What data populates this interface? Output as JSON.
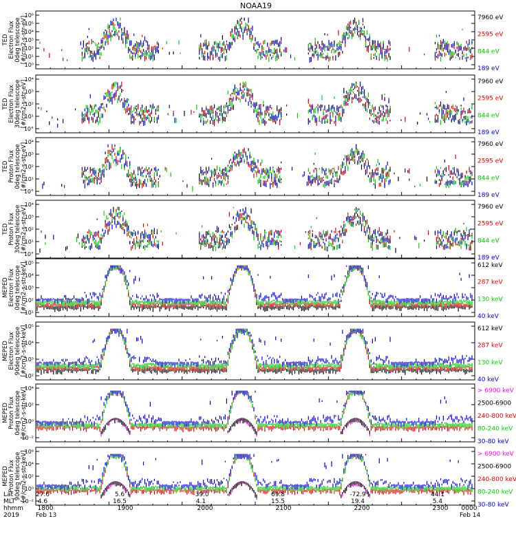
{
  "title": "NOAA19",
  "colors": {
    "black": "#000000",
    "red": "#e00000",
    "green": "#00d000",
    "blue": "#0000e0",
    "magenta": "#ff00ff"
  },
  "chart_data": [
    {
      "type": "scatter",
      "ylabel": [
        "TED",
        "Electron Flux",
        "0deg telescope",
        "[#/cm2-s-str-eV]"
      ],
      "yticks": [
        "10⁰",
        "10¹",
        "10²",
        "10³",
        "10⁴",
        "10⁵",
        "10⁶"
      ],
      "ylim_exp": [
        0,
        6
      ],
      "legend": [
        {
          "label": "7960 eV",
          "color": "black"
        },
        {
          "label": "2595 eV",
          "color": "red"
        },
        {
          "label": "844 eV",
          "color": "green"
        },
        {
          "label": "189 eV",
          "color": "blue"
        }
      ]
    },
    {
      "type": "scatter",
      "ylabel": [
        "TED",
        "Electron Flux",
        "30deg telescope",
        "[#/cm2-s-str-eV]"
      ],
      "yticks": [
        "10°",
        "10¹",
        "10²",
        "10³",
        "10⁴"
      ],
      "ylim_exp": [
        0,
        4.5
      ],
      "legend": [
        {
          "label": "7960 eV",
          "color": "black"
        },
        {
          "label": "2595 eV",
          "color": "red"
        },
        {
          "label": "844 eV",
          "color": "green"
        },
        {
          "label": "189 eV",
          "color": "blue"
        }
      ]
    },
    {
      "type": "scatter",
      "ylabel": [
        "TED",
        "Proton Flux",
        "0deg telescope",
        "[#/cm2-s-str-eV]"
      ],
      "yticks": [
        "10°",
        "10¹",
        "10²",
        "10³",
        "10⁴"
      ],
      "ylim_exp": [
        0,
        4.5
      ],
      "legend": [
        {
          "label": "7960 eV",
          "color": "black"
        },
        {
          "label": "2595 eV",
          "color": "red"
        },
        {
          "label": "844 eV",
          "color": "green"
        },
        {
          "label": "189 eV",
          "color": "blue"
        }
      ]
    },
    {
      "type": "scatter",
      "ylabel": [
        "TED",
        "Proton Flux",
        "30deg telescope",
        "[#/cm2-s-str-eV]"
      ],
      "yticks": [
        "10°",
        "10¹",
        "10²",
        "10³",
        "10⁴"
      ],
      "ylim_exp": [
        0,
        4.5
      ],
      "legend": [
        {
          "label": "7960 eV",
          "color": "black"
        },
        {
          "label": "2595 eV",
          "color": "red"
        },
        {
          "label": "844 eV",
          "color": "green"
        },
        {
          "label": "189 eV",
          "color": "blue"
        }
      ]
    },
    {
      "type": "scatter",
      "ylabel": [
        "MEPED",
        "Electron Flux",
        "0deg telescope",
        "[#/cm2-s-str-keV]"
      ],
      "yticks": [
        "10¹",
        "10²",
        "10³",
        "10⁴",
        "10⁵"
      ],
      "ylim_exp": [
        1,
        5.5
      ],
      "legend": [
        {
          "label": "612 keV",
          "color": "black"
        },
        {
          "label": "287 keV",
          "color": "red"
        },
        {
          "label": "130 keV",
          "color": "green"
        },
        {
          "label": "40 keV",
          "color": "blue"
        }
      ]
    },
    {
      "type": "scatter",
      "ylabel": [
        "MEPED",
        "Electron Flux",
        "90deg telescope",
        "[#/cm2-s-str-keV]"
      ],
      "yticks": [
        "10²",
        "10³",
        "10⁴",
        "10⁵"
      ],
      "ylim_exp": [
        1.6,
        5.4
      ],
      "legend": [
        {
          "label": "612 keV",
          "color": "black"
        },
        {
          "label": "287 keV",
          "color": "red"
        },
        {
          "label": "130 keV",
          "color": "green"
        },
        {
          "label": "40 keV",
          "color": "blue"
        }
      ]
    },
    {
      "type": "scatter",
      "ylabel": [
        "MEPED",
        "Proton Flux",
        "0deg telescope",
        "[#/cm2-s-str-keV]"
      ],
      "yticks": [
        "10⁻²",
        "10⁰",
        "10²",
        "10⁴"
      ],
      "ylim_exp": [
        -2.6,
        5
      ],
      "legend": [
        {
          "label": "> 6900 keV",
          "color": "magenta"
        },
        {
          "label": "2500-6900",
          "color": "black"
        },
        {
          "label": "240-800 keV",
          "color": "red"
        },
        {
          "label": "80-240 keV",
          "color": "green"
        },
        {
          "label": "30-80 keV",
          "color": "blue"
        }
      ]
    },
    {
      "type": "scatter",
      "ylabel": [
        "MEPED",
        "Proton Flux",
        "90deg telescope",
        "[#/cm2-s-str-keV]"
      ],
      "yticks": [
        "10⁻²",
        "10⁰",
        "10²",
        "10⁴",
        "10⁶"
      ],
      "ylim_exp": [
        -2.6,
        6.4
      ],
      "legend": [
        {
          "label": "> 6900 keV",
          "color": "magenta"
        },
        {
          "label": "2500-6900",
          "color": "black"
        },
        {
          "label": "240-800 keV",
          "color": "red"
        },
        {
          "label": "80-240 keV",
          "color": "green"
        },
        {
          "label": "30-80 keV",
          "color": "blue"
        }
      ]
    }
  ],
  "xaxis": {
    "row_labels": [
      "Lat",
      "MLT",
      "hhmm",
      "2019"
    ],
    "lat": [
      "27.6",
      "5.6",
      "-39.0",
      "69.8",
      "-72.9",
      "44.1"
    ],
    "mlt": [
      "4.6",
      "16.5",
      "4.1",
      "15.5",
      "19.4",
      "5.4"
    ],
    "hhmm": [
      "1800",
      "1900",
      "2000",
      "2100",
      "2200",
      "2300",
      "0000"
    ],
    "date_start": "Feb 13",
    "date_end": "Feb 14"
  }
}
